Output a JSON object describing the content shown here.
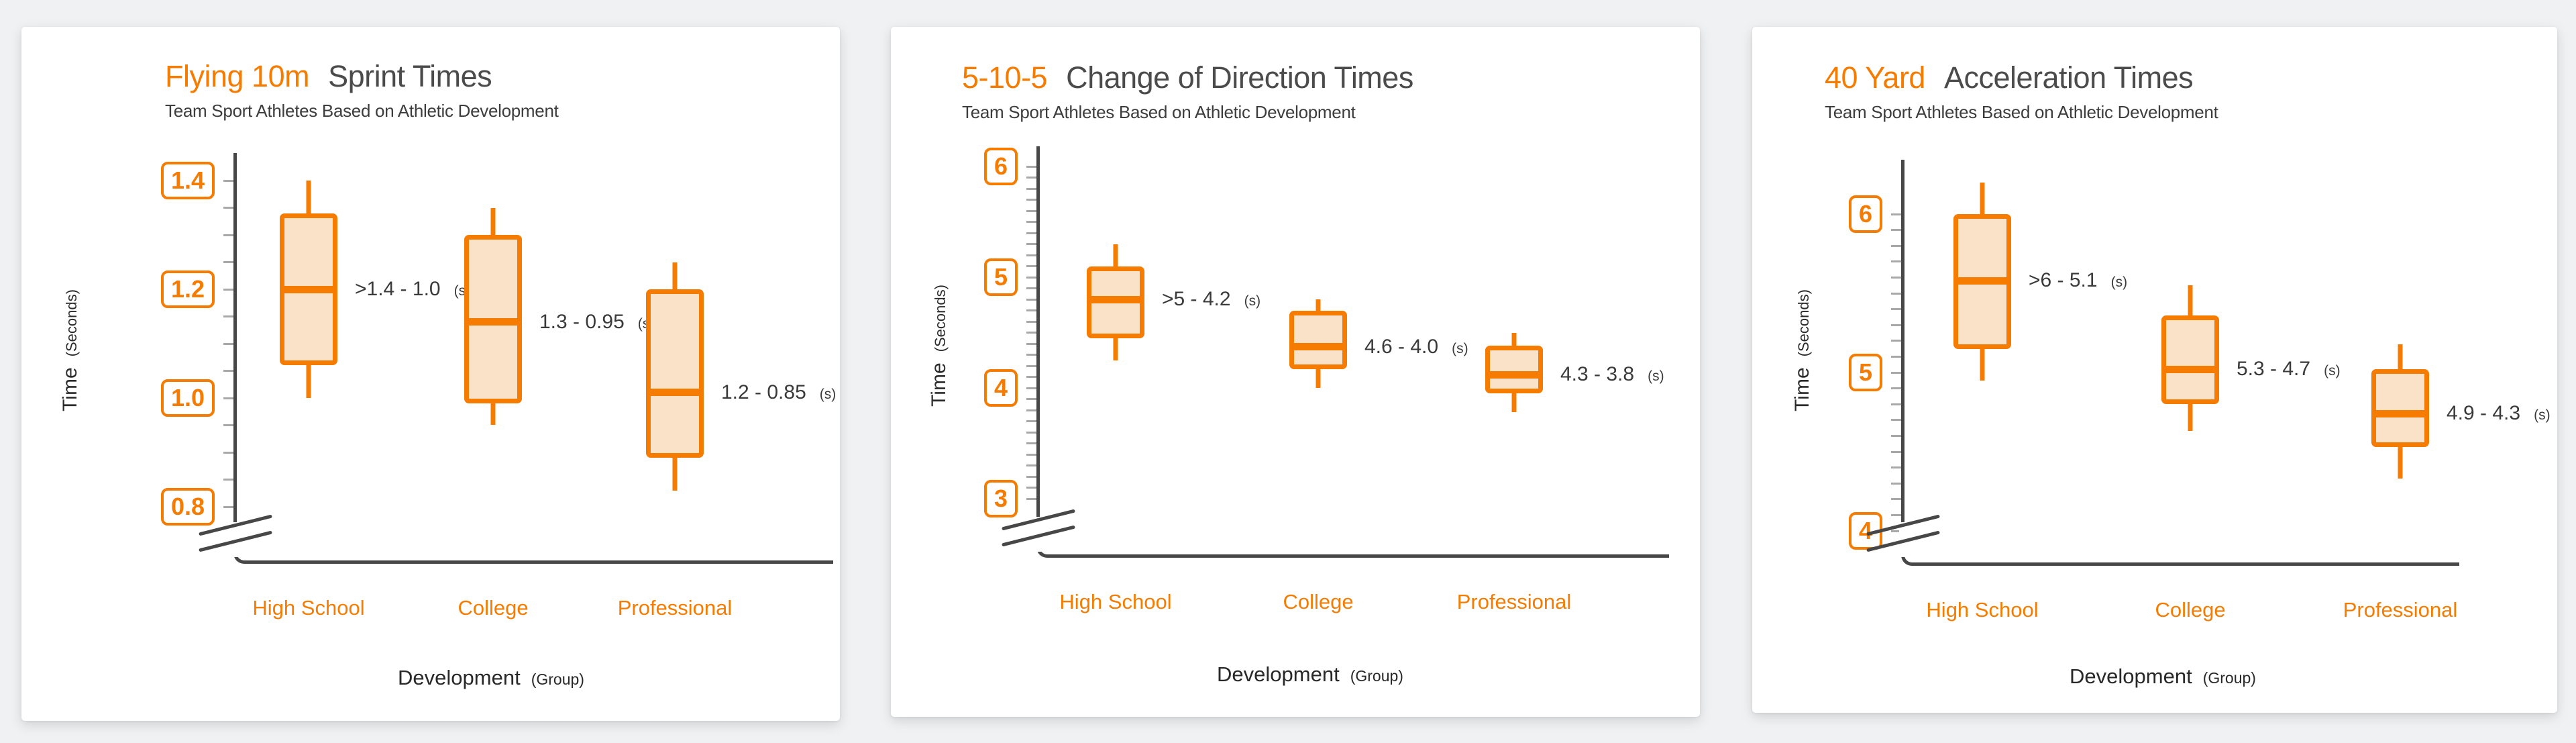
{
  "page": {
    "background": "#f0f1f3"
  },
  "colors": {
    "accent": "#f57c00",
    "box_fill": "#fae2c8",
    "axis_line": "#474747",
    "tick": "#a8a8a8",
    "title_text": "#4b4b4b",
    "subtitle_text": "#3d3d3d",
    "annotation_text": "#3a3a3a"
  },
  "chart_data": [
    {
      "type": "box",
      "title_highlight": "Flying 10m",
      "title_rest": "Sprint Times",
      "subtitle": "Team Sport Athletes Based on Athletic Development",
      "y_axis": {
        "label": "Time",
        "unit": "(Seconds)",
        "major_ticks": [
          1.4,
          1.2,
          1.0,
          0.8
        ],
        "major_labels": [
          "1.4",
          "1.2",
          "1.0",
          "0.8"
        ],
        "minor_step": 0.05,
        "min_tick": 0.8,
        "axis_break": true
      },
      "x_axis": {
        "label": "Development",
        "unit": "(Group)",
        "categories": [
          "High School",
          "College",
          "Professional"
        ]
      },
      "boxes": [
        {
          "category": "High School",
          "whisker_low": 1.0,
          "q1": 1.06,
          "median": 1.2,
          "q3": 1.34,
          "whisker_high": 1.4,
          "annotation": ">1.4 - 1.0",
          "annotation_unit": "(s)"
        },
        {
          "category": "College",
          "whisker_low": 0.95,
          "q1": 0.99,
          "median": 1.14,
          "q3": 1.3,
          "whisker_high": 1.35,
          "annotation": "1.3 - 0.95",
          "annotation_unit": "(s)"
        },
        {
          "category": "Professional",
          "whisker_low": 0.83,
          "q1": 0.89,
          "median": 1.01,
          "q3": 1.2,
          "whisker_high": 1.25,
          "annotation": "1.2 - 0.85",
          "annotation_unit": "(s)"
        }
      ]
    },
    {
      "type": "box",
      "title_highlight": "5-10-5",
      "title_rest": "Change of Direction Times",
      "subtitle": "Team Sport Athletes Based on Athletic Development",
      "y_axis": {
        "label": "Time",
        "unit": "(Seconds)",
        "major_ticks": [
          6,
          5,
          4,
          3
        ],
        "major_labels": [
          "6",
          "5",
          "4",
          "3"
        ],
        "minor_step": 0.1,
        "min_tick": 3.0,
        "axis_break": true
      },
      "x_axis": {
        "label": "Development",
        "unit": "(Group)",
        "categories": [
          "High School",
          "College",
          "Professional"
        ]
      },
      "boxes": [
        {
          "category": "High School",
          "whisker_low": 4.25,
          "q1": 4.45,
          "median": 4.8,
          "q3": 5.1,
          "whisker_high": 5.3,
          "annotation": ">5 - 4.2",
          "annotation_unit": "(s)"
        },
        {
          "category": "College",
          "whisker_low": 4.0,
          "q1": 4.17,
          "median": 4.37,
          "q3": 4.7,
          "whisker_high": 4.8,
          "annotation": "4.6 - 4.0",
          "annotation_unit": "(s)"
        },
        {
          "category": "Professional",
          "whisker_low": 3.78,
          "q1": 3.95,
          "median": 4.12,
          "q3": 4.38,
          "whisker_high": 4.5,
          "annotation": "4.3 - 3.8",
          "annotation_unit": "(s)"
        }
      ]
    },
    {
      "type": "box",
      "title_highlight": "40 Yard",
      "title_rest": "Acceleration Times",
      "subtitle": "Team Sport Athletes Based on Athletic Development",
      "y_axis": {
        "label": "Time",
        "unit": "(Seconds)",
        "major_ticks": [
          6,
          5,
          4
        ],
        "major_labels": [
          "6",
          "5",
          "4"
        ],
        "minor_step": 0.1,
        "min_tick": 4.0,
        "axis_break": true
      },
      "x_axis": {
        "label": "Development",
        "unit": "(Group)",
        "categories": [
          "High School",
          "College",
          "Professional"
        ]
      },
      "boxes": [
        {
          "category": "High School",
          "whisker_low": 4.95,
          "q1": 5.15,
          "median": 5.58,
          "q3": 6.0,
          "whisker_high": 6.2,
          "annotation": ">6 - 5.1",
          "annotation_unit": "(s)"
        },
        {
          "category": "College",
          "whisker_low": 4.63,
          "q1": 4.8,
          "median": 5.02,
          "q3": 5.36,
          "whisker_high": 5.55,
          "annotation": "5.3 - 4.7",
          "annotation_unit": "(s)"
        },
        {
          "category": "Professional",
          "whisker_low": 4.33,
          "q1": 4.53,
          "median": 4.74,
          "q3": 5.02,
          "whisker_high": 5.18,
          "annotation": "4.9 - 4.3",
          "annotation_unit": "(s)"
        }
      ]
    }
  ]
}
